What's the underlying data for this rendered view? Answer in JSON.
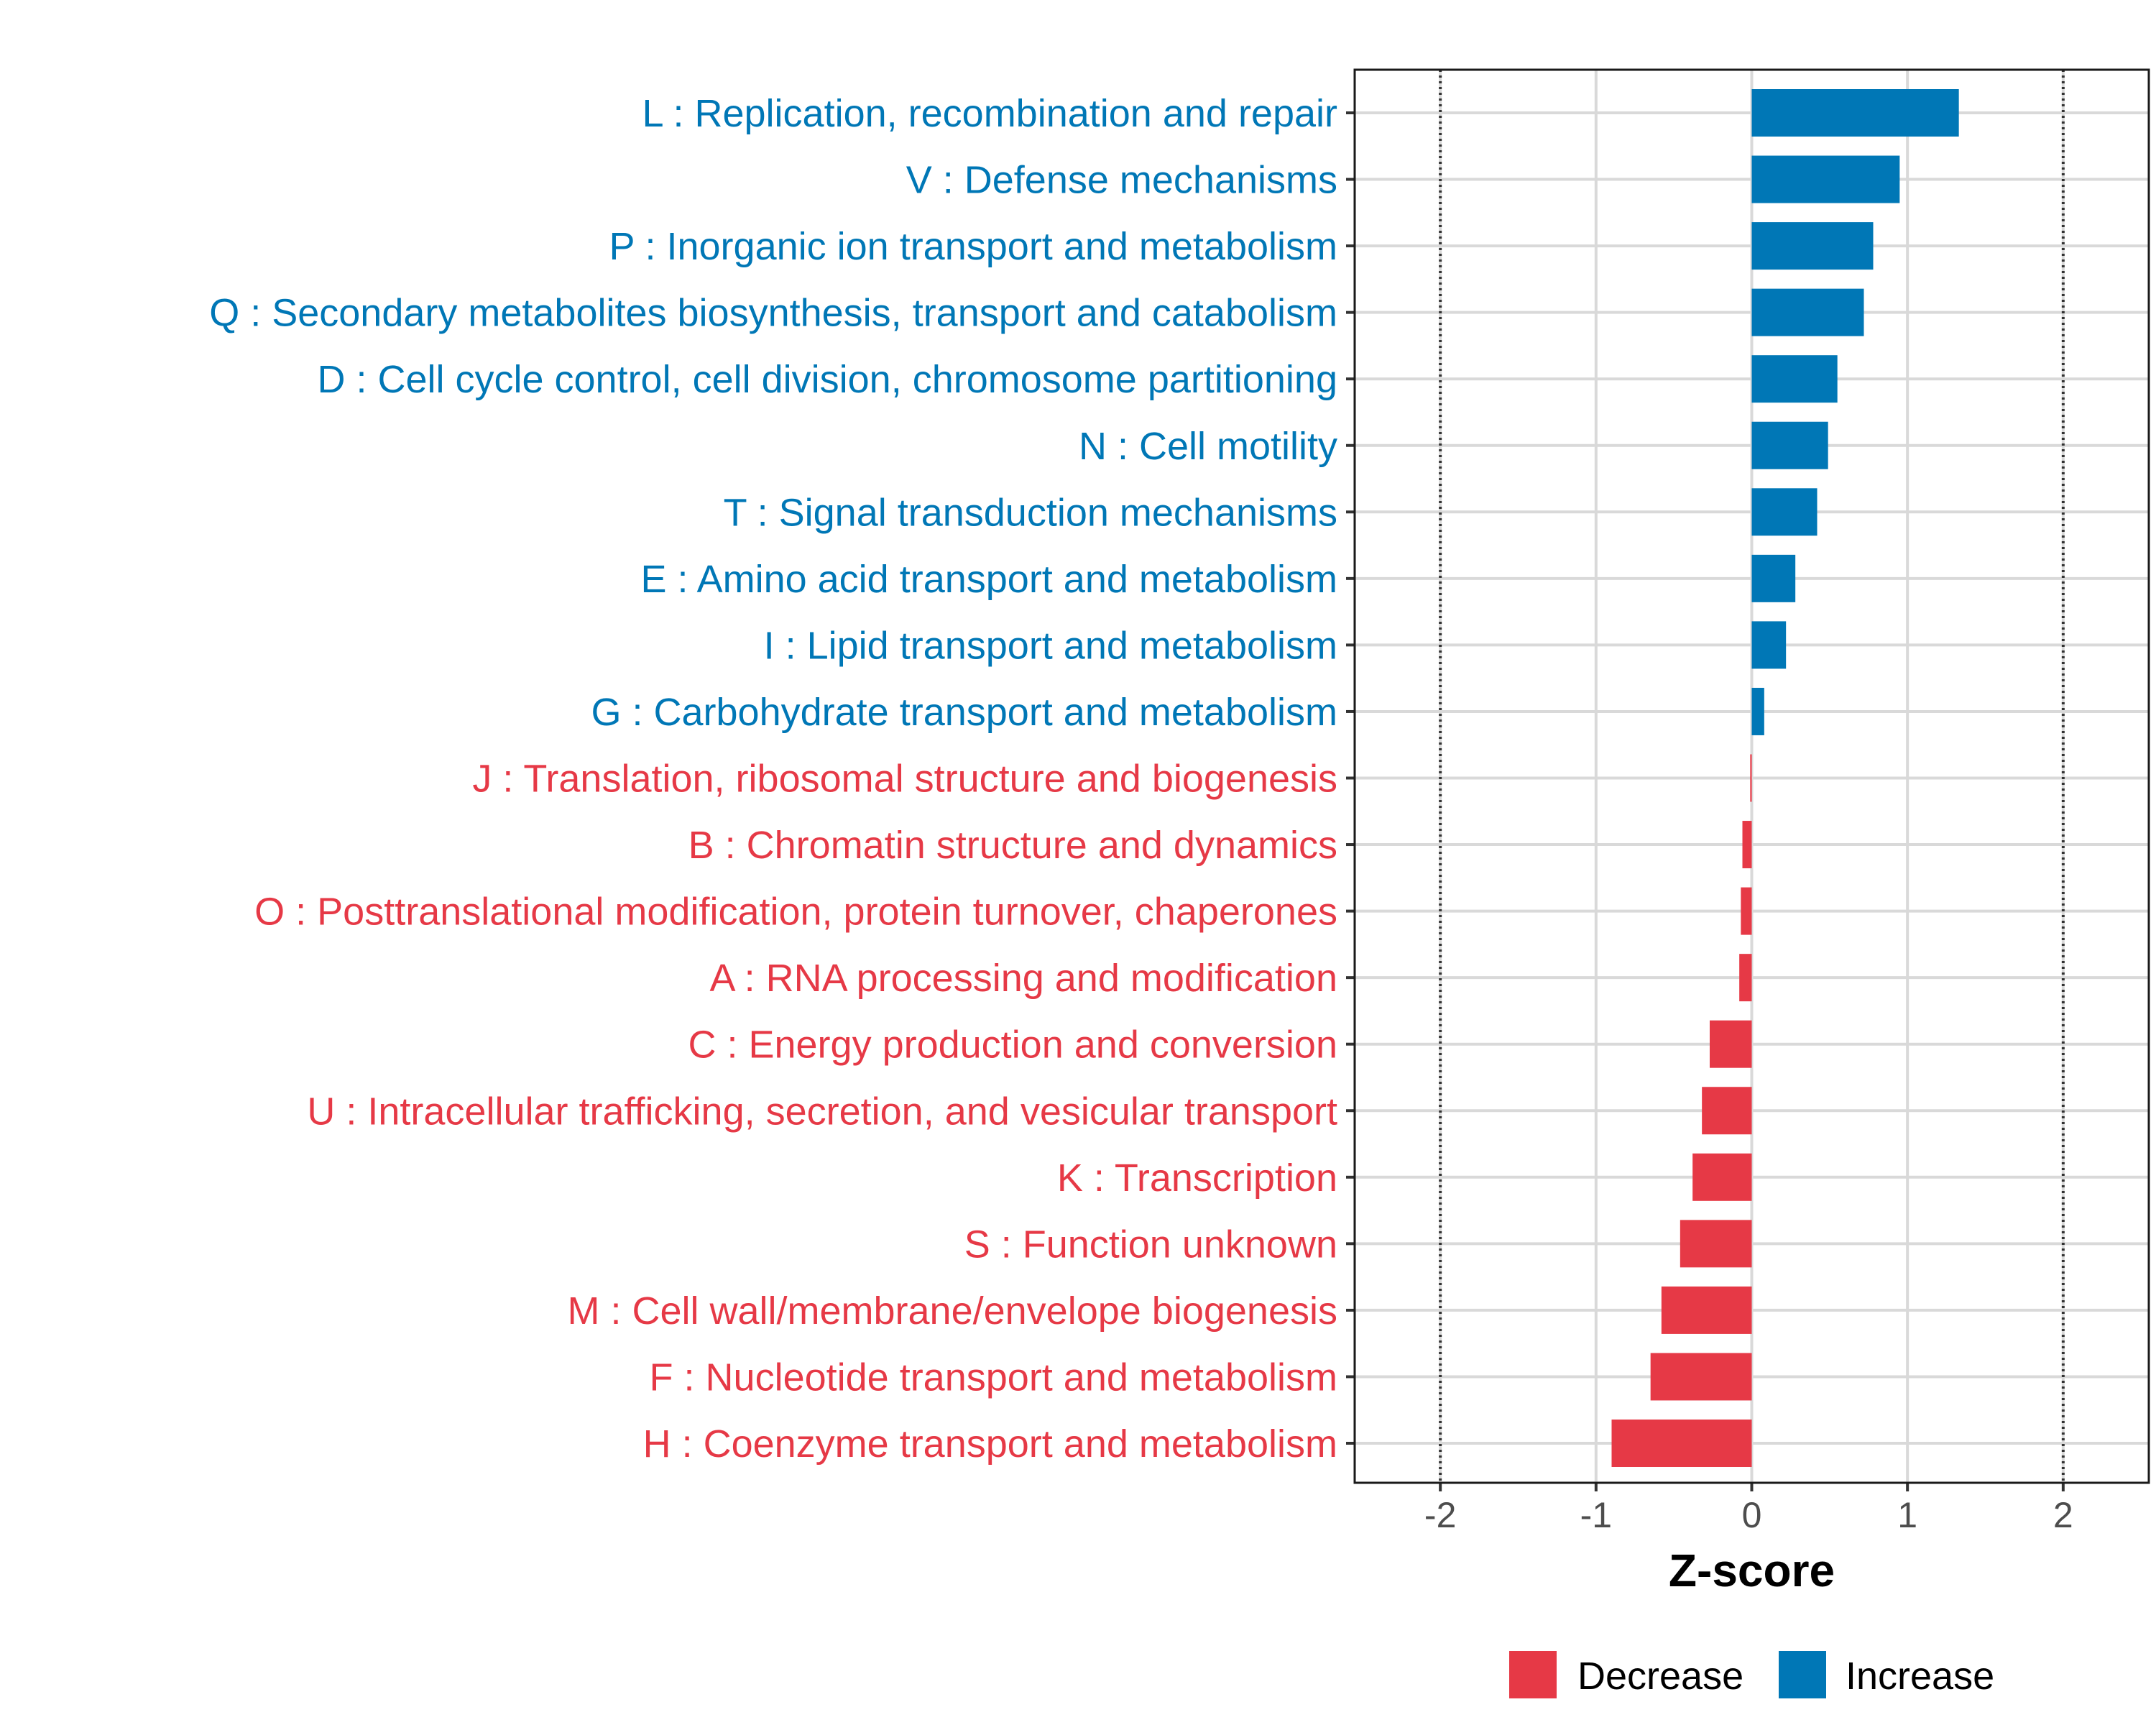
{
  "chart_data": {
    "type": "bar",
    "orientation": "horizontal",
    "title": "",
    "xlabel": "Z-score",
    "ylabel": "",
    "xlim": [
      -2.55,
      2.55
    ],
    "xticks": [
      -2,
      -1,
      0,
      1,
      2
    ],
    "xtick_labels": [
      "-2",
      "-1",
      "0",
      "1",
      "2"
    ],
    "reference_lines": [
      -2,
      2
    ],
    "grid": true,
    "legend_position": "bottom",
    "colors": {
      "Decrease": "#e63946",
      "Increase": "#0077b6",
      "gridline": "#d9d9d9",
      "reference": "#333333"
    },
    "categories": [
      "L : Replication, recombination and repair",
      "V : Defense mechanisms",
      "P : Inorganic ion transport and metabolism",
      "Q : Secondary metabolites biosynthesis, transport and catabolism",
      "D : Cell cycle control, cell division, chromosome partitioning",
      "N : Cell motility",
      "T : Signal transduction mechanisms",
      "E : Amino acid transport and metabolism",
      "I : Lipid transport and metabolism",
      "G : Carbohydrate transport and metabolism",
      "J : Translation, ribosomal structure and biogenesis",
      "B : Chromatin structure and dynamics",
      "O : Posttranslational modification, protein turnover, chaperones",
      "A : RNA processing and modification",
      "C : Energy production and conversion",
      "U : Intracellular trafficking, secretion, and vesicular transport",
      "K : Transcription",
      "S : Function unknown",
      "M : Cell wall/membrane/envelope biogenesis",
      "F : Nucleotide transport and metabolism",
      "H : Coenzyme transport and metabolism"
    ],
    "values": [
      1.33,
      0.95,
      0.78,
      0.72,
      0.55,
      0.49,
      0.42,
      0.28,
      0.22,
      0.08,
      -0.01,
      -0.06,
      -0.07,
      -0.08,
      -0.27,
      -0.32,
      -0.38,
      -0.46,
      -0.58,
      -0.65,
      -0.9
    ],
    "groups": [
      "Increase",
      "Increase",
      "Increase",
      "Increase",
      "Increase",
      "Increase",
      "Increase",
      "Increase",
      "Increase",
      "Increase",
      "Decrease",
      "Decrease",
      "Decrease",
      "Decrease",
      "Decrease",
      "Decrease",
      "Decrease",
      "Decrease",
      "Decrease",
      "Decrease",
      "Decrease"
    ],
    "legend": [
      {
        "name": "Decrease",
        "label": "Decrease"
      },
      {
        "name": "Increase",
        "label": "Increase"
      }
    ]
  }
}
